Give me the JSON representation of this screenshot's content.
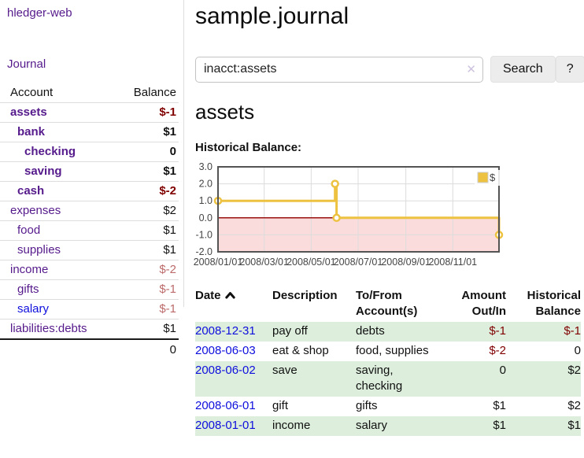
{
  "app": {
    "brand": "hledger-web"
  },
  "sidebar": {
    "journal_link": "Journal",
    "accounts": {
      "header_account": "Account",
      "header_balance": "Balance",
      "rows": [
        {
          "name": "assets",
          "depth": 1,
          "balance": "$-1",
          "negative": true,
          "bold": true,
          "blue": false
        },
        {
          "name": "bank",
          "depth": 2,
          "balance": "$1",
          "negative": false,
          "bold": true,
          "blue": false
        },
        {
          "name": "checking",
          "depth": 3,
          "balance": "0",
          "negative": false,
          "bold": true,
          "blue": false
        },
        {
          "name": "saving",
          "depth": 3,
          "balance": "$1",
          "negative": false,
          "bold": true,
          "blue": false
        },
        {
          "name": "cash",
          "depth": 2,
          "balance": "$-2",
          "negative": true,
          "bold": true,
          "blue": false
        },
        {
          "name": "expenses",
          "depth": 1,
          "balance": "$2",
          "negative": false,
          "bold": false,
          "blue": false
        },
        {
          "name": "food",
          "depth": 2,
          "balance": "$1",
          "negative": false,
          "bold": false,
          "blue": false
        },
        {
          "name": "supplies",
          "depth": 2,
          "balance": "$1",
          "negative": false,
          "bold": false,
          "blue": false
        },
        {
          "name": "income",
          "depth": 1,
          "balance": "$-2",
          "negative": true,
          "bold": false,
          "blue": false
        },
        {
          "name": "gifts",
          "depth": 2,
          "balance": "$-1",
          "negative": true,
          "bold": false,
          "blue": false
        },
        {
          "name": "salary",
          "depth": 2,
          "balance": "$-1",
          "negative": true,
          "bold": false,
          "blue": true
        },
        {
          "name": "liabilities:debts",
          "depth": 1,
          "balance": "$1",
          "negative": false,
          "bold": false,
          "blue": false
        }
      ],
      "total": "0"
    }
  },
  "main": {
    "title": "sample.journal",
    "search": {
      "value": "inacct:assets",
      "clear_icon": "✕",
      "search_button": "Search",
      "help_button": "?"
    },
    "account_heading": "assets",
    "chart_label": "Historical Balance:"
  },
  "chart_data": {
    "type": "line",
    "title": "Historical Balance",
    "xlabel": "",
    "ylabel": "",
    "grid": true,
    "legend": {
      "position": "top-right",
      "entries": [
        "$"
      ]
    },
    "series": [
      {
        "name": "$",
        "color": "#EDC240",
        "steps": true,
        "points": [
          [
            "2008-01-01",
            1
          ],
          [
            "2008-06-01",
            2
          ],
          [
            "2008-06-02",
            2
          ],
          [
            "2008-06-03",
            0
          ],
          [
            "2008-12-31",
            -1
          ]
        ]
      }
    ],
    "xlim": [
      "2008-01-01",
      "2008-12-31"
    ],
    "ylim": [
      -2,
      3
    ],
    "x_ticks": [
      "2008/01/01",
      "2008/03/01",
      "2008/05/01",
      "2008/07/01",
      "2008/09/01",
      "2008/11/01"
    ],
    "y_ticks": [
      -2,
      -1,
      0,
      1,
      2,
      3
    ],
    "negative_fill": "#fbdcdc",
    "zero_line_color": "#991111"
  },
  "register": {
    "headers": {
      "date": "Date",
      "description": "Description",
      "accounts": "To/From Account(s)",
      "amount": "Amount Out/In",
      "balance": "Historical Balance"
    },
    "rows": [
      {
        "date": "2008-12-31",
        "description": "pay off",
        "accounts": "debts",
        "amount": "$-1",
        "amount_negative": true,
        "balance": "$-1",
        "balance_negative": true
      },
      {
        "date": "2008-06-03",
        "description": "eat & shop",
        "accounts": "food, supplies",
        "amount": "$-2",
        "amount_negative": true,
        "balance": "0",
        "balance_negative": false
      },
      {
        "date": "2008-06-02",
        "description": "save",
        "accounts": "saving, checking",
        "amount": "0",
        "amount_negative": false,
        "balance": "$2",
        "balance_negative": false
      },
      {
        "date": "2008-06-01",
        "description": "gift",
        "accounts": "gifts",
        "amount": "$1",
        "amount_negative": false,
        "balance": "$2",
        "balance_negative": false
      },
      {
        "date": "2008-01-01",
        "description": "income",
        "accounts": "salary",
        "amount": "$1",
        "amount_negative": false,
        "balance": "$1",
        "balance_negative": false
      }
    ]
  },
  "colors": {
    "link_purple": "#551a8b",
    "link_blue": "#0f0fdd",
    "negative": "#800000",
    "negative_muted": "#bc6a6a",
    "row_stripe": "#ddeedd",
    "series_yellow": "#EDC240",
    "negative_region_pink": "#fbdcdc",
    "zero_line_red": "#991111"
  }
}
